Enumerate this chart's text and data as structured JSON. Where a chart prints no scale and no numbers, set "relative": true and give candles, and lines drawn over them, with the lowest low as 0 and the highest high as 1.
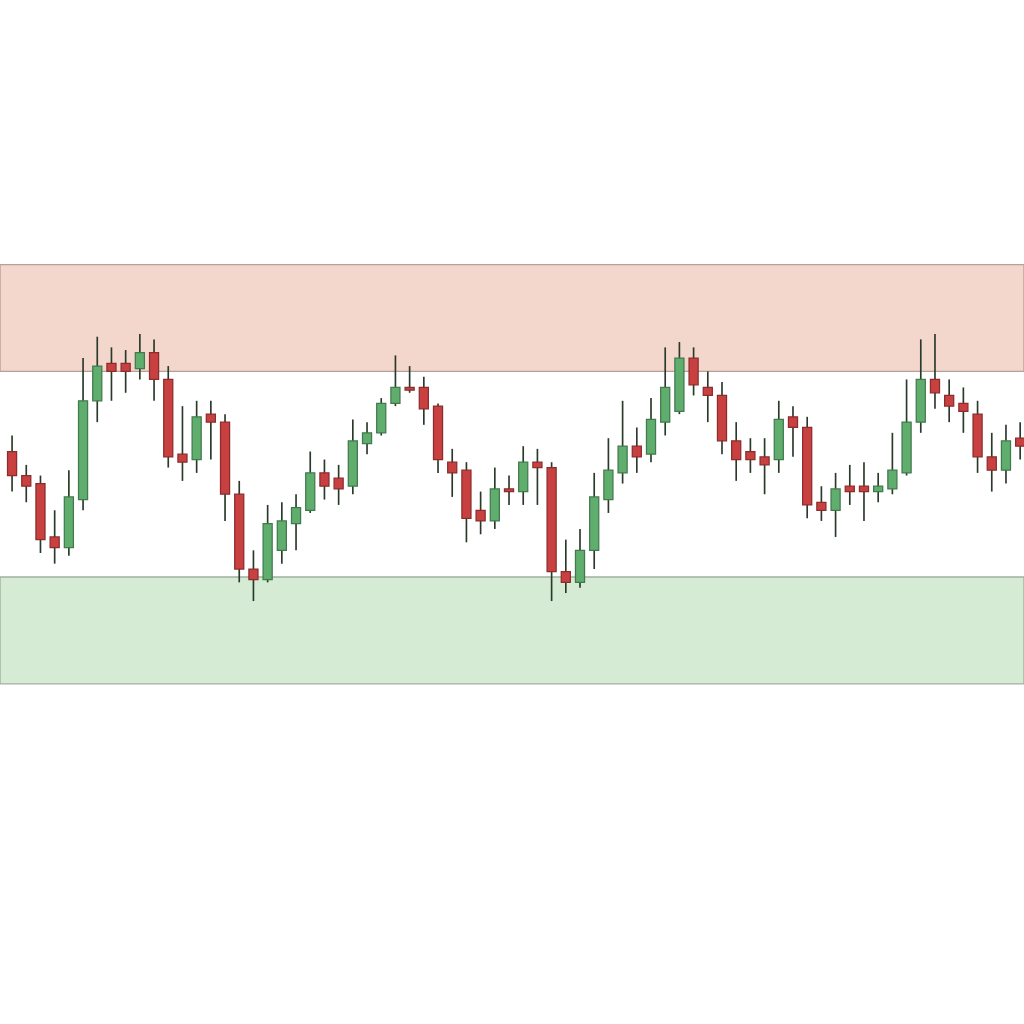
{
  "chart_data": {
    "type": "candlestick",
    "relative": true,
    "categories": [
      null,
      null,
      null,
      null,
      null,
      null,
      null,
      null,
      null,
      null,
      null,
      null,
      null,
      null,
      null,
      null,
      null,
      null,
      null,
      null,
      null,
      null,
      null,
      null,
      null,
      null,
      null,
      null,
      null,
      null,
      null,
      null,
      null,
      null,
      null,
      null,
      null,
      null,
      null,
      null,
      null,
      null,
      null,
      null,
      null,
      null,
      null,
      null,
      null,
      null,
      null,
      null,
      null,
      null,
      null,
      null,
      null,
      null,
      null,
      null,
      null,
      null,
      null,
      null,
      null,
      null,
      null,
      null,
      null,
      null,
      null,
      null
    ],
    "ohlc": [
      [
        0.56,
        0.62,
        0.41,
        0.47
      ],
      [
        0.47,
        0.51,
        0.37,
        0.43
      ],
      [
        0.44,
        0.47,
        0.18,
        0.23
      ],
      [
        0.24,
        0.34,
        0.14,
        0.2
      ],
      [
        0.2,
        0.49,
        0.17,
        0.39
      ],
      [
        0.38,
        0.91,
        0.34,
        0.75
      ],
      [
        0.75,
        0.99,
        0.67,
        0.88
      ],
      [
        0.89,
        0.95,
        0.75,
        0.86
      ],
      [
        0.89,
        0.94,
        0.78,
        0.86
      ],
      [
        0.87,
        1.0,
        0.83,
        0.93
      ],
      [
        0.93,
        0.98,
        0.75,
        0.83
      ],
      [
        0.83,
        0.88,
        0.5,
        0.54
      ],
      [
        0.55,
        0.73,
        0.45,
        0.52
      ],
      [
        0.53,
        0.75,
        0.48,
        0.69
      ],
      [
        0.7,
        0.75,
        0.53,
        0.67
      ],
      [
        0.67,
        0.7,
        0.3,
        0.4
      ],
      [
        0.4,
        0.45,
        0.07,
        0.12
      ],
      [
        0.12,
        0.19,
        0,
        0.08
      ],
      [
        0.08,
        0.36,
        0.07,
        0.29
      ],
      [
        0.19,
        0.37,
        0.14,
        0.3
      ],
      [
        0.29,
        0.4,
        0.19,
        0.35
      ],
      [
        0.34,
        0.56,
        0.33,
        0.48
      ],
      [
        0.48,
        0.53,
        0.38,
        0.43
      ],
      [
        0.46,
        0.51,
        0.36,
        0.42
      ],
      [
        0.43,
        0.68,
        0.4,
        0.6
      ],
      [
        0.59,
        0.67,
        0.55,
        0.63
      ],
      [
        0.63,
        0.76,
        0.62,
        0.74
      ],
      [
        0.74,
        0.92,
        0.73,
        0.8
      ],
      [
        0.8,
        0.88,
        0.78,
        0.79
      ],
      [
        0.8,
        0.84,
        0.66,
        0.72
      ],
      [
        0.73,
        0.74,
        0.48,
        0.53
      ],
      [
        0.52,
        0.57,
        0.39,
        0.48
      ],
      [
        0.49,
        0.52,
        0.22,
        0.31
      ],
      [
        0.34,
        0.41,
        0.25,
        0.3
      ],
      [
        0.3,
        0.5,
        0.27,
        0.42
      ],
      [
        0.42,
        0.47,
        0.36,
        0.41
      ],
      [
        0.41,
        0.58,
        0.36,
        0.52
      ],
      [
        0.52,
        0.57,
        0.36,
        0.5
      ],
      [
        0.5,
        0.52,
        0,
        0.11
      ],
      [
        0.11,
        0.23,
        0.03,
        0.07
      ],
      [
        0.07,
        0.27,
        0.05,
        0.19
      ],
      [
        0.19,
        0.48,
        0.12,
        0.39
      ],
      [
        0.38,
        0.61,
        0.33,
        0.49
      ],
      [
        0.48,
        0.75,
        0.44,
        0.58
      ],
      [
        0.58,
        0.65,
        0.48,
        0.54
      ],
      [
        0.55,
        0.76,
        0.52,
        0.68
      ],
      [
        0.67,
        0.95,
        0.62,
        0.8
      ],
      [
        0.71,
        0.97,
        0.7,
        0.91
      ],
      [
        0.91,
        0.95,
        0.77,
        0.81
      ],
      [
        0.8,
        0.86,
        0.67,
        0.77
      ],
      [
        0.77,
        0.82,
        0.55,
        0.6
      ],
      [
        0.6,
        0.67,
        0.45,
        0.53
      ],
      [
        0.56,
        0.61,
        0.48,
        0.53
      ],
      [
        0.54,
        0.61,
        0.4,
        0.51
      ],
      [
        0.53,
        0.75,
        0.48,
        0.68
      ],
      [
        0.69,
        0.73,
        0.54,
        0.65
      ],
      [
        0.65,
        0.69,
        0.31,
        0.36
      ],
      [
        0.37,
        0.43,
        0.3,
        0.34
      ],
      [
        0.34,
        0.48,
        0.24,
        0.42
      ],
      [
        0.43,
        0.51,
        0.36,
        0.41
      ],
      [
        0.43,
        0.52,
        0.3,
        0.41
      ],
      [
        0.41,
        0.48,
        0.37,
        0.43
      ],
      [
        0.42,
        0.63,
        0.4,
        0.49
      ],
      [
        0.48,
        0.83,
        0.47,
        0.67
      ],
      [
        0.67,
        0.98,
        0.63,
        0.83
      ],
      [
        0.83,
        1.0,
        0.72,
        0.78
      ],
      [
        0.77,
        0.83,
        0.67,
        0.73
      ],
      [
        0.74,
        0.8,
        0.63,
        0.71
      ],
      [
        0.7,
        0.75,
        0.48,
        0.54
      ],
      [
        0.54,
        0.63,
        0.41,
        0.49
      ],
      [
        0.49,
        0.66,
        0.44,
        0.6
      ],
      [
        0.61,
        0.67,
        0.53,
        0.58
      ]
    ],
    "colors": [
      "#c84040",
      "#c84040",
      "#c84040",
      "#c84040",
      "#5fae6e",
      "#5fae6e",
      "#5fae6e",
      "#c84040",
      "#c84040",
      "#5fae6e",
      "#c84040",
      "#c84040",
      "#c84040",
      "#5fae6e",
      "#c84040",
      "#c84040",
      "#c84040",
      "#c84040",
      "#5fae6e",
      "#5fae6e",
      "#5fae6e",
      "#5fae6e",
      "#c84040",
      "#c84040",
      "#5fae6e",
      "#5fae6e",
      "#5fae6e",
      "#5fae6e",
      "#c84040",
      "#c84040",
      "#c84040",
      "#c84040",
      "#c84040",
      "#c84040",
      "#5fae6e",
      "#c84040",
      "#5fae6e",
      "#c84040",
      "#c84040",
      "#c84040",
      "#5fae6e",
      "#5fae6e",
      "#5fae6e",
      "#5fae6e",
      "#c84040",
      "#5fae6e",
      "#5fae6e",
      "#5fae6e",
      "#c84040",
      "#c84040",
      "#c84040",
      "#c84040",
      "#c84040",
      "#c84040",
      "#5fae6e",
      "#c84040",
      "#c84040",
      "#c84040",
      "#5fae6e",
      "#c84040",
      "#c84040",
      "#5fae6e",
      "#5fae6e",
      "#5fae6e",
      "#5fae6e",
      "#c84040",
      "#c84040",
      "#c84040",
      "#c84040",
      "#c84040",
      "#5fae6e",
      "#c84040"
    ],
    "bands": [
      {
        "axis": "y",
        "from": 0.86,
        "to": 1.26,
        "color": "#f3d6cc"
      },
      {
        "axis": "y",
        "from": -0.31,
        "to": 0.09,
        "color": "#d6ebd4"
      }
    ]
  }
}
